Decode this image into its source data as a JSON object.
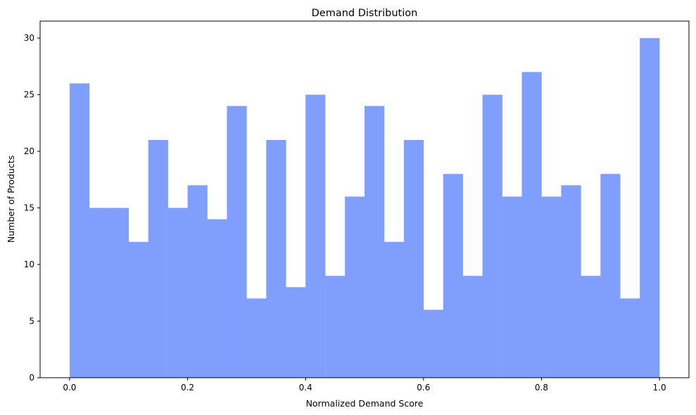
{
  "chart_data": {
    "type": "bar",
    "title": "Demand Distribution",
    "xlabel": "Normalized Demand Score",
    "ylabel": "Number of Products",
    "xlim": [
      -0.05,
      1.05
    ],
    "ylim": [
      0,
      31.5
    ],
    "xticks": [
      0.0,
      0.2,
      0.4,
      0.6,
      0.8,
      1.0
    ],
    "xtick_labels": [
      "0.0",
      "0.2",
      "0.4",
      "0.6",
      "0.8",
      "1.0"
    ],
    "yticks": [
      0,
      5,
      10,
      15,
      20,
      25,
      30
    ],
    "ytick_labels": [
      "0",
      "5",
      "10",
      "15",
      "20",
      "25",
      "30"
    ],
    "bin_edges": [
      0.0,
      0.03333,
      0.06667,
      0.1,
      0.13333,
      0.16667,
      0.2,
      0.23333,
      0.26667,
      0.3,
      0.33333,
      0.36667,
      0.4,
      0.43333,
      0.46667,
      0.5,
      0.53333,
      0.56667,
      0.6,
      0.63333,
      0.66667,
      0.7,
      0.73333,
      0.76667,
      0.8,
      0.83333,
      0.86667,
      0.9,
      0.93333,
      0.96667,
      1.0
    ],
    "values": [
      26,
      15,
      15,
      12,
      21,
      15,
      17,
      14,
      24,
      7,
      21,
      8,
      25,
      9,
      16,
      24,
      12,
      21,
      6,
      18,
      9,
      25,
      16,
      27,
      16,
      17,
      9,
      18,
      7,
      30
    ],
    "bar_color": "#809ffd",
    "grid": false,
    "legend": "none"
  }
}
